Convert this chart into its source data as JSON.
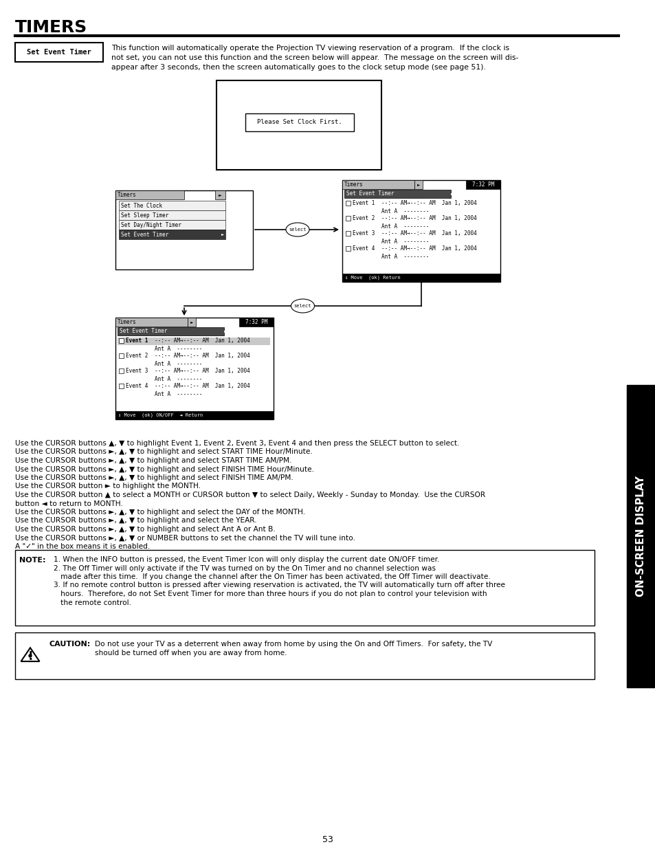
{
  "title": "TIMERS",
  "page_number": "53",
  "section_label": "Set Event Timer",
  "intro_text_line1": "This function will automatically operate the Projection TV viewing reservation of a program.  If the clock is",
  "intro_text_line2": "not set, you can not use this function and the screen below will appear.  The message on the screen will dis-",
  "intro_text_line3": "appear after 3 seconds, then the screen automatically goes to the clock setup mode (see page 51).",
  "clock_msg": "Please Set Clock First.",
  "menu1_title": "Timers",
  "menu1_items": [
    "Set The Clock",
    "Set Sleep Timer",
    "Set Day/Night Timer",
    "Set Event Timer"
  ],
  "menu1_selected": "Set Event Timer",
  "menu2_title": "Timers",
  "menu2_time": "7:32 PM",
  "menu2_selected": "Set Event Timer",
  "event_line1": "--:-- AM→--:-- AM  Jan 1, 2004",
  "event_line2": "Ant A  --------",
  "menu2_footer": "↕ Move  (ok) Return",
  "menu3_footer": "↕ Move  (ok) ON/OFF  ◄ Return",
  "body_text": [
    "Use the CURSOR buttons ▲, ▼ to highlight Event 1, Event 2, Event 3, Event 4 and then press the SELECT button to select.",
    "Use the CURSOR buttons ►, ▲, ▼ to highlight and select START TIME Hour/Minute.",
    "Use the CURSOR buttons ►, ▲, ▼ to highlight and select START TIME AM/PM.",
    "Use the CURSOR buttons ►, ▲, ▼ to highlight and select FINISH TIME Hour/Minute.",
    "Use the CURSOR buttons ►, ▲, ▼ to highlight and select FINISH TIME AM/PM.",
    "Use the CURSOR button ► to highlight the MONTH.",
    "Use the CURSOR button ▲ to select a MONTH or CURSOR button ▼ to select Daily, Weekly - Sunday to Monday.  Use the CURSOR",
    "button ◄ to return to MONTH.",
    "Use the CURSOR buttons ►, ▲, ▼ to highlight and select the DAY of the MONTH.",
    "Use the CURSOR buttons ►, ▲, ▼ to highlight and select the YEAR.",
    "Use the CURSOR buttons ►, ▲, ▼ to highlight and select Ant A or Ant B.",
    "Use the CURSOR buttons ►, ▲, ▼ or NUMBER buttons to set the channel the TV will tune into.",
    "A \"✓\" in the box means it is enabled."
  ],
  "note_label": "NOTE:",
  "note_items": [
    "1. When the INFO button is pressed, the Event Timer Icon will only display the current date ON/OFF timer.",
    "2. The Off Timer will only activate if the TV was turned on by the On Timer and no channel selection was",
    "   made after this time.  If you change the channel after the On Timer has been activated, the Off Timer will deactivate.",
    "3. If no remote control button is pressed after viewing reservation is activated, the TV will automatically turn off after three",
    "   hours.  Therefore, do not Set Event Timer for more than three hours if you do not plan to control your television with",
    "   the remote control."
  ],
  "caution_label": "CAUTION:",
  "caution_line1": "Do not use your TV as a deterrent when away from home by using the On and Off Timers.  For safety, the TV",
  "caution_line2": "should be turned off when you are away from home.",
  "sidebar_text": "ON-SCREEN DISPLAY"
}
